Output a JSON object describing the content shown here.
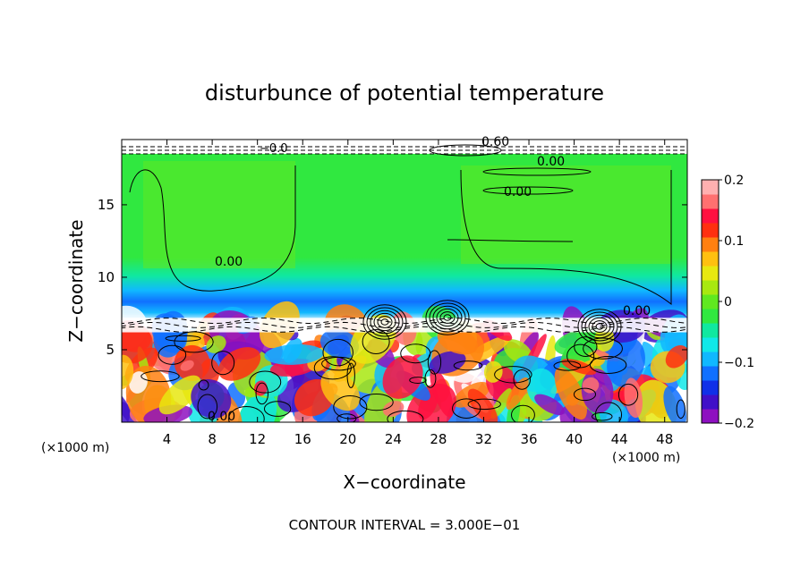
{
  "chart_data": {
    "type": "heatmap",
    "title": "disturbunce of potential temperature",
    "xlabel": "X−coordinate",
    "ylabel": "Z−coordinate",
    "x_unit_left": "(×1000 m)",
    "x_unit_right": "(×1000 m)",
    "xlim": [
      0,
      50
    ],
    "ylim": [
      0,
      19.5
    ],
    "x_ticks": [
      4,
      8,
      12,
      16,
      20,
      24,
      28,
      32,
      36,
      40,
      44,
      48
    ],
    "y_ticks": [
      5,
      10,
      15
    ],
    "colorbar": {
      "range": [
        -0.2,
        0.2
      ],
      "ticks": [
        0.2,
        0.1,
        0,
        -0.1,
        -0.2
      ],
      "tick_labels": [
        "0.2",
        "0.1",
        "0",
        "−0.1",
        "−0.2"
      ],
      "colors": [
        "#8e10c0",
        "#4010c8",
        "#1030e8",
        "#1070ff",
        "#10b8ff",
        "#10e8e8",
        "#10e8a0",
        "#30e840",
        "#60e820",
        "#a8e810",
        "#e8e810",
        "#ffc010",
        "#ff8010",
        "#ff3010",
        "#ff1040",
        "#ff7070",
        "#ffb0b0"
      ]
    },
    "contour_labels": [
      "0.60",
      "0.00",
      "0.00",
      "0.00",
      "0.00",
      "0.00",
      "−0.0"
    ],
    "contour_interval_text": "CONTOUR INTERVAL = 3.000E−01",
    "description_of_field": "Upper troposphere (z 7.5–19) ~0 (green) with slightly negative band near z 8–10; lower layer (z < 7) turbulent with values from −0.2 to above 0.2"
  }
}
